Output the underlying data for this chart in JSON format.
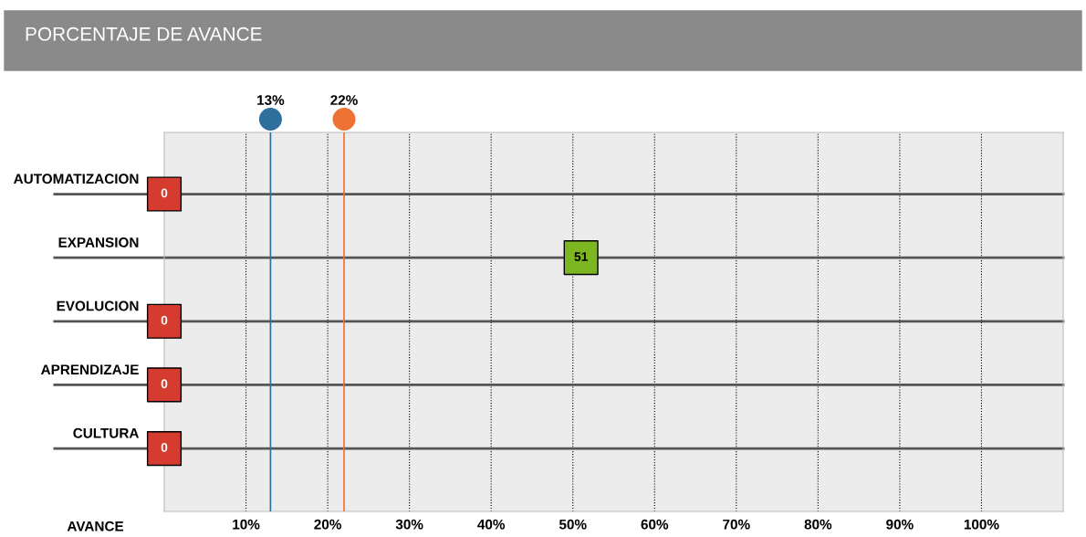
{
  "chart_data": {
    "type": "scatter",
    "title": "PORCENTAJE DE AVANCE",
    "xlabel": "AVANCE",
    "orientation": "horizontal",
    "marker": "square",
    "categories": [
      "AUTOMATIZACION",
      "EXPANSION",
      "EVOLUCION",
      "APRENDIZAJE",
      "CULTURA"
    ],
    "values": [
      0,
      51,
      0,
      0,
      0
    ],
    "colors": [
      "#d63b2f",
      "#7cb721",
      "#d63b2f",
      "#d63b2f",
      "#d63b2f"
    ],
    "data_labels": true,
    "xlim": [
      0,
      110
    ],
    "xticks": [
      {
        "value": 10,
        "label": "10%"
      },
      {
        "value": 20,
        "label": "20%"
      },
      {
        "value": 30,
        "label": "30%"
      },
      {
        "value": 40,
        "label": "40%"
      },
      {
        "value": 50,
        "label": "50%"
      },
      {
        "value": 60,
        "label": "60%"
      },
      {
        "value": 70,
        "label": "70%"
      },
      {
        "value": 80,
        "label": "80%"
      },
      {
        "value": 90,
        "label": "90%"
      },
      {
        "value": 100,
        "label": "100%"
      }
    ],
    "grid": "x",
    "ref_lines": [
      {
        "axis": "x",
        "value": 13,
        "label": "13%",
        "color": "#2e6f9e"
      },
      {
        "axis": "x",
        "value": 22,
        "label": "22%",
        "color": "#ee7233"
      }
    ]
  }
}
